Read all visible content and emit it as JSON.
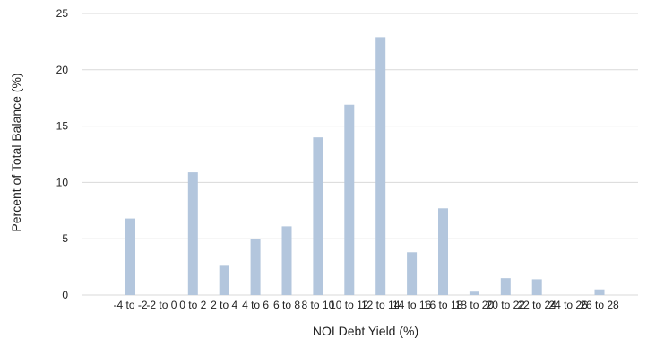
{
  "chart_data": {
    "type": "bar",
    "title": "",
    "xlabel": "NOI Debt Yield (%)",
    "ylabel": "Percent of Total Balance (%)",
    "ylim": [
      0,
      25
    ],
    "yticks": [
      0,
      5,
      10,
      15,
      20,
      25
    ],
    "grid": "horizontal",
    "bar_color": "#b3c6dd",
    "categories": [
      "-4 to -2",
      "-2 to 0",
      "0 to 2",
      "2 to 4",
      "4 to 6",
      "6 to 8",
      "8 to 10",
      "10 to 12",
      "12 to 14",
      "14 to 16",
      "16 to 18",
      "18 to 20",
      "20 to 22",
      "22 to 24",
      "24 to 26",
      "26 to 28"
    ],
    "values": [
      6.8,
      0,
      10.9,
      2.6,
      5.0,
      6.1,
      14.0,
      16.9,
      22.9,
      3.8,
      7.7,
      0.3,
      1.5,
      1.4,
      0,
      0.5
    ]
  }
}
